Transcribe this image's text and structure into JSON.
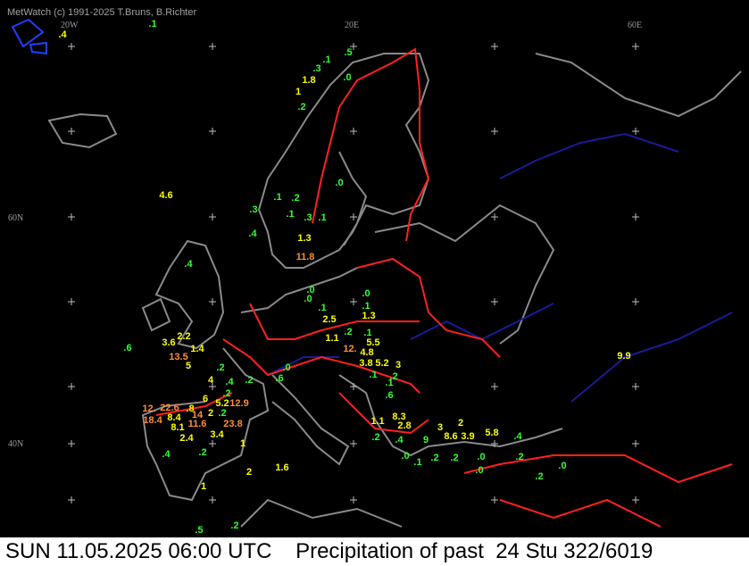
{
  "header": {
    "credit": "MetWatch  (c) 1991-2025 T.Bruns, B.Richter"
  },
  "grid_labels": [
    "20W",
    "20E",
    "60E",
    "60N",
    "40N"
  ],
  "footer": {
    "time": "SUN 11.05.2025 06:00 UTC",
    "title": "Precipitation of past  24 Stu 322/6019"
  },
  "stations": [
    {
      "label": ".4",
      "color": "#ffff00"
    },
    {
      "label": ".1",
      "color": "#33ff33"
    },
    {
      "label": ".5",
      "color": "#33ff33"
    },
    {
      "label": ".1",
      "color": "#33ff33"
    },
    {
      "label": ".3",
      "color": "#33ff33"
    },
    {
      "label": "1.8",
      "color": "#ffff00"
    },
    {
      "label": ".0",
      "color": "#33ff33"
    },
    {
      "label": "1",
      "color": "#ffff00"
    },
    {
      "label": ".2",
      "color": "#33ff33"
    },
    {
      "label": ".0",
      "color": "#33ff33"
    },
    {
      "label": "4.6",
      "color": "#ffff00"
    },
    {
      "label": ".1",
      "color": "#33ff33"
    },
    {
      "label": ".2",
      "color": "#33ff33"
    },
    {
      "label": ".3",
      "color": "#33ff33"
    },
    {
      "label": ".1",
      "color": "#33ff33"
    },
    {
      "label": ".3",
      "color": "#33ff33"
    },
    {
      "label": ".1",
      "color": "#33ff33"
    },
    {
      "label": ".4",
      "color": "#33ff33"
    },
    {
      "label": "1.3",
      "color": "#ffff00"
    },
    {
      "label": "11.8",
      "color": "#ff8c3c"
    },
    {
      "label": ".4",
      "color": "#33ff33"
    },
    {
      "label": ".0",
      "color": "#33ff33"
    },
    {
      "label": ".0",
      "color": "#33ff33"
    },
    {
      "label": ".0",
      "color": "#33ff33"
    },
    {
      "label": ".1",
      "color": "#33ff33"
    },
    {
      "label": ".1",
      "color": "#33ff33"
    },
    {
      "label": "2.5",
      "color": "#ffff00"
    },
    {
      "label": "1.3",
      "color": "#ffff00"
    },
    {
      "label": ".2",
      "color": "#33ff33"
    },
    {
      "label": ".1",
      "color": "#33ff33"
    },
    {
      "label": "1.1",
      "color": "#ffff00"
    },
    {
      "label": "5.5",
      "color": "#ffff00"
    },
    {
      "label": ".6",
      "color": "#33ff33"
    },
    {
      "label": "3.6",
      "color": "#ffff00"
    },
    {
      "label": "2.2",
      "color": "#ffff00"
    },
    {
      "label": "1.4",
      "color": "#ffff00"
    },
    {
      "label": "12.",
      "color": "#ff8c3c"
    },
    {
      "label": "4.8",
      "color": "#ffff00"
    },
    {
      "label": "13.5",
      "color": "#ff8c3c"
    },
    {
      "label": "5",
      "color": "#ffff00"
    },
    {
      "label": ".2",
      "color": "#33ff33"
    },
    {
      "label": ".0",
      "color": "#33ff33"
    },
    {
      "label": "3.8",
      "color": "#ffff00"
    },
    {
      "label": "5.2",
      "color": "#ffff00"
    },
    {
      "label": "3",
      "color": "#ffff00"
    },
    {
      "label": ".1",
      "color": "#33ff33"
    },
    {
      "label": ".2",
      "color": "#33ff33"
    },
    {
      "label": ".6",
      "color": "#33ff33"
    },
    {
      "label": "4",
      "color": "#ffff00"
    },
    {
      "label": ".4",
      "color": "#33ff33"
    },
    {
      "label": ".2",
      "color": "#33ff33"
    },
    {
      "label": ".1",
      "color": "#33ff33"
    },
    {
      "label": "9.9",
      "color": "#ffff00"
    },
    {
      "label": "6",
      "color": "#ffff00"
    },
    {
      "label": ".2",
      "color": "#33ff33"
    },
    {
      "label": ".6",
      "color": "#33ff33"
    },
    {
      "label": "12.",
      "color": "#ff8c3c"
    },
    {
      "label": "22.6",
      "color": "#ff8c3c"
    },
    {
      "label": ".8",
      "color": "#ffff00"
    },
    {
      "label": "5.2",
      "color": "#ffff00"
    },
    {
      "label": "12.9",
      "color": "#ff8c3c"
    },
    {
      "label": "8.4",
      "color": "#ffff00"
    },
    {
      "label": "14",
      "color": "#ff8c3c"
    },
    {
      "label": "2",
      "color": "#ffff00"
    },
    {
      "label": ".2",
      "color": "#33ff33"
    },
    {
      "label": "18.4",
      "color": "#ff8c3c"
    },
    {
      "label": "8.1",
      "color": "#ffff00"
    },
    {
      "label": "11.6",
      "color": "#ff8c3c"
    },
    {
      "label": "23.8",
      "color": "#ff8c3c"
    },
    {
      "label": "1.1",
      "color": "#ffff00"
    },
    {
      "label": "8.3",
      "color": "#ffff00"
    },
    {
      "label": "2.8",
      "color": "#ffff00"
    },
    {
      "label": "3",
      "color": "#ffff00"
    },
    {
      "label": "2",
      "color": "#ffff00"
    },
    {
      "label": "2.4",
      "color": "#ffff00"
    },
    {
      "label": "3.4",
      "color": "#ffff00"
    },
    {
      "label": "8.6",
      "color": "#ffff00"
    },
    {
      "label": "3.9",
      "color": "#ffff00"
    },
    {
      "label": "5.8",
      "color": "#ffff00"
    },
    {
      "label": ".4",
      "color": "#33ff33"
    },
    {
      "label": ".2",
      "color": "#33ff33"
    },
    {
      "label": ".4",
      "color": "#33ff33"
    },
    {
      "label": "9",
      "color": "#33ff33"
    },
    {
      "label": "1",
      "color": "#ffff00"
    },
    {
      "label": ".4",
      "color": "#33ff33"
    },
    {
      "label": ".2",
      "color": "#33ff33"
    },
    {
      "label": ".0",
      "color": "#33ff33"
    },
    {
      "label": ".1",
      "color": "#33ff33"
    },
    {
      "label": ".2",
      "color": "#33ff33"
    },
    {
      "label": ".2",
      "color": "#33ff33"
    },
    {
      "label": ".0",
      "color": "#33ff33"
    },
    {
      "label": ".2",
      "color": "#33ff33"
    },
    {
      "label": "1.6",
      "color": "#ffff00"
    },
    {
      "label": "2",
      "color": "#ffff00"
    },
    {
      "label": ".0",
      "color": "#33ff33"
    },
    {
      "label": ".0",
      "color": "#33ff33"
    },
    {
      "label": ".2",
      "color": "#33ff33"
    },
    {
      "label": "1",
      "color": "#ffff00"
    },
    {
      "label": ".5",
      "color": "#33ff33"
    },
    {
      "label": ".2",
      "color": "#33ff33"
    }
  ]
}
